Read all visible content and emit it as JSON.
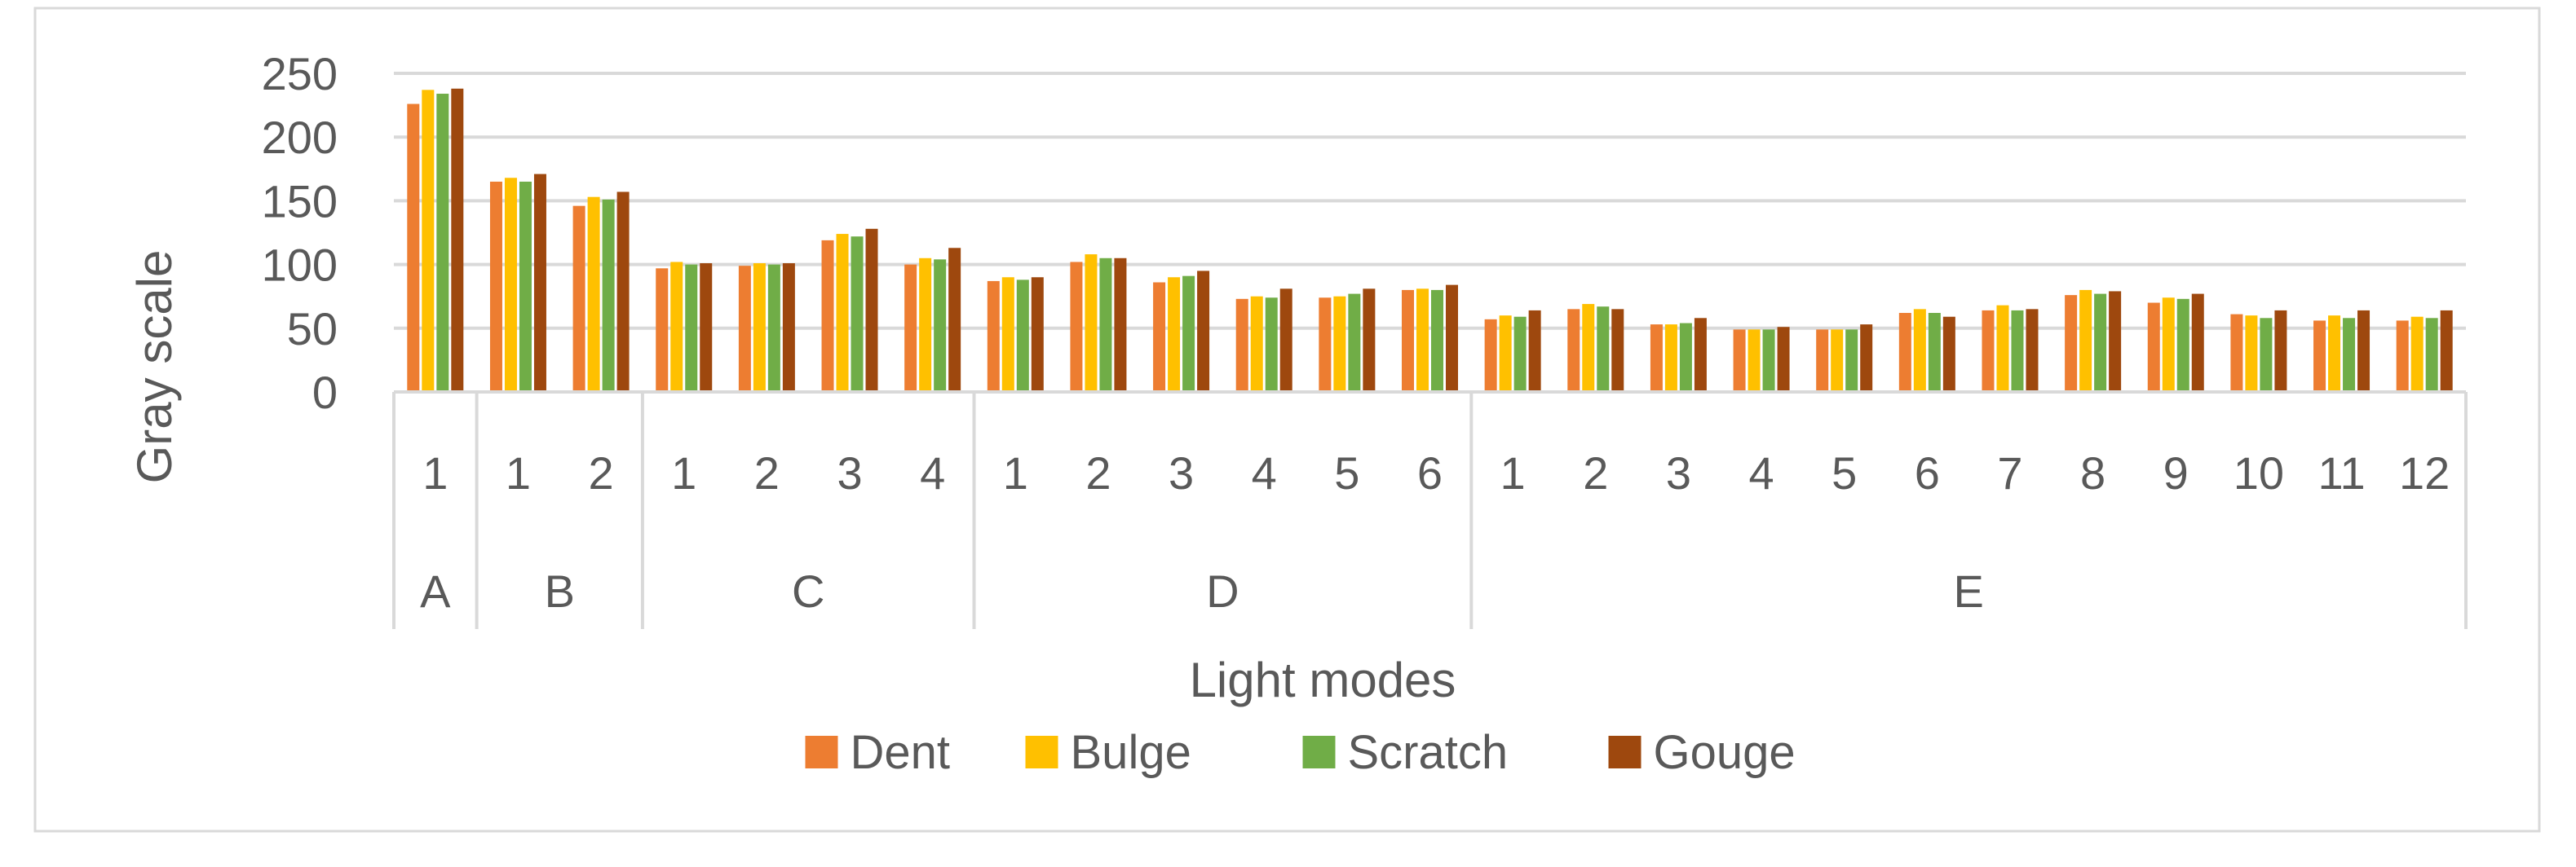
{
  "chart_data": {
    "type": "bar",
    "title": "",
    "xlabel": "Light modes",
    "ylabel": "Gray scale",
    "ylim": [
      0,
      250
    ],
    "yticks": [
      0,
      50,
      100,
      150,
      200,
      250
    ],
    "grid": true,
    "legend": "bottom",
    "groups": [
      {
        "name": "A",
        "categories": [
          "1"
        ]
      },
      {
        "name": "B",
        "categories": [
          "1",
          "2"
        ]
      },
      {
        "name": "C",
        "categories": [
          "1",
          "2",
          "3",
          "4"
        ]
      },
      {
        "name": "D",
        "categories": [
          "1",
          "2",
          "3",
          "4",
          "5",
          "6"
        ]
      },
      {
        "name": "E",
        "categories": [
          "1",
          "2",
          "3",
          "4",
          "5",
          "6",
          "7",
          "8",
          "9",
          "10",
          "11",
          "12"
        ]
      }
    ],
    "series": [
      {
        "name": "Dent",
        "color": "#ED7D31",
        "values": [
          226,
          165,
          146,
          97,
          99,
          119,
          100,
          87,
          102,
          86,
          73,
          74,
          80,
          57,
          65,
          53,
          49,
          49,
          62,
          64,
          76,
          70,
          61,
          56,
          56
        ]
      },
      {
        "name": "Bulge",
        "color": "#FFC000",
        "values": [
          237,
          168,
          153,
          102,
          101,
          124,
          105,
          90,
          108,
          90,
          75,
          75,
          81,
          60,
          69,
          53,
          49,
          49,
          65,
          68,
          80,
          74,
          60,
          60,
          59
        ]
      },
      {
        "name": "Scratch",
        "color": "#70AD47",
        "values": [
          234,
          165,
          151,
          100,
          100,
          122,
          104,
          88,
          105,
          91,
          74,
          77,
          80,
          59,
          67,
          54,
          49,
          49,
          62,
          64,
          77,
          73,
          58,
          58,
          58
        ]
      },
      {
        "name": "Gouge",
        "color": "#9E480E",
        "values": [
          238,
          171,
          157,
          101,
          101,
          128,
          113,
          90,
          105,
          95,
          81,
          81,
          84,
          64,
          65,
          58,
          51,
          53,
          59,
          65,
          79,
          77,
          64,
          64,
          64
        ]
      }
    ]
  }
}
